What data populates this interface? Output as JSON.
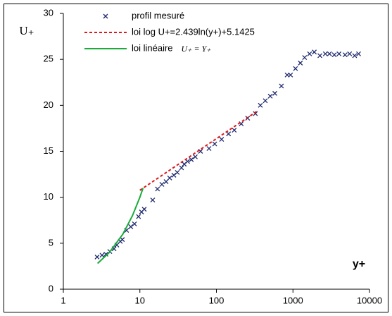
{
  "chart_data": {
    "type": "scatter",
    "y_label": "U₊",
    "x_label": "y+",
    "annotation": "U₊ = Y₊",
    "xscale": "log",
    "xlim": [
      1,
      10000
    ],
    "xticks": [
      1,
      10,
      100,
      1000,
      10000
    ],
    "ylim": [
      0,
      30
    ],
    "yticks": [
      0,
      5,
      10,
      15,
      20,
      25,
      30
    ],
    "series": [
      {
        "name": "profil mesuré",
        "type": "scatter",
        "color": "#1f2a6e",
        "x": [
          2.76,
          3.2,
          3.6,
          4.05,
          4.6,
          5.0,
          5.55,
          5.9,
          6.7,
          7.6,
          8.5,
          9.6,
          10.5,
          11.4,
          14.7,
          17,
          19.4,
          22,
          24.5,
          27.8,
          30.8,
          35,
          38,
          42,
          47,
          53,
          62,
          80,
          95,
          117,
          144,
          171,
          211,
          256,
          323,
          375,
          435,
          505,
          580,
          707,
          840,
          930,
          1080,
          1250,
          1420,
          1650,
          1900,
          2250,
          2650,
          3000,
          3470,
          4000,
          4800,
          5500,
          6400,
          7200
        ],
        "values": [
          3.5,
          3.7,
          3.8,
          4.1,
          4.4,
          4.8,
          5.2,
          5.4,
          6.4,
          6.8,
          7.1,
          7.9,
          8.4,
          8.7,
          9.7,
          10.9,
          11.4,
          11.7,
          12.1,
          12.4,
          12.7,
          13.2,
          13.6,
          13.9,
          14.1,
          14.4,
          15.0,
          15.3,
          15.8,
          16.3,
          16.9,
          17.3,
          18.0,
          18.6,
          19.1,
          20.0,
          20.5,
          21.0,
          21.3,
          22.1,
          23.3,
          23.3,
          24.0,
          24.6,
          25.2,
          25.6,
          25.8,
          25.4,
          25.6,
          25.6,
          25.5,
          25.6,
          25.5,
          25.6,
          25.4,
          25.6
        ]
      },
      {
        "name": "loi log U+=2.439ln(y+)+5.1425",
        "type": "line",
        "dash": true,
        "color": "#e0161c",
        "x": [
          10,
          350
        ],
        "values": [
          10.76,
          19.43
        ]
      },
      {
        "name": "loi linéaire",
        "type": "line",
        "dash": false,
        "color": "#1aab3a",
        "x": [
          2.8,
          4,
          6,
          8,
          10,
          11
        ],
        "values": [
          2.8,
          4,
          6,
          8,
          10,
          11
        ]
      }
    ]
  }
}
